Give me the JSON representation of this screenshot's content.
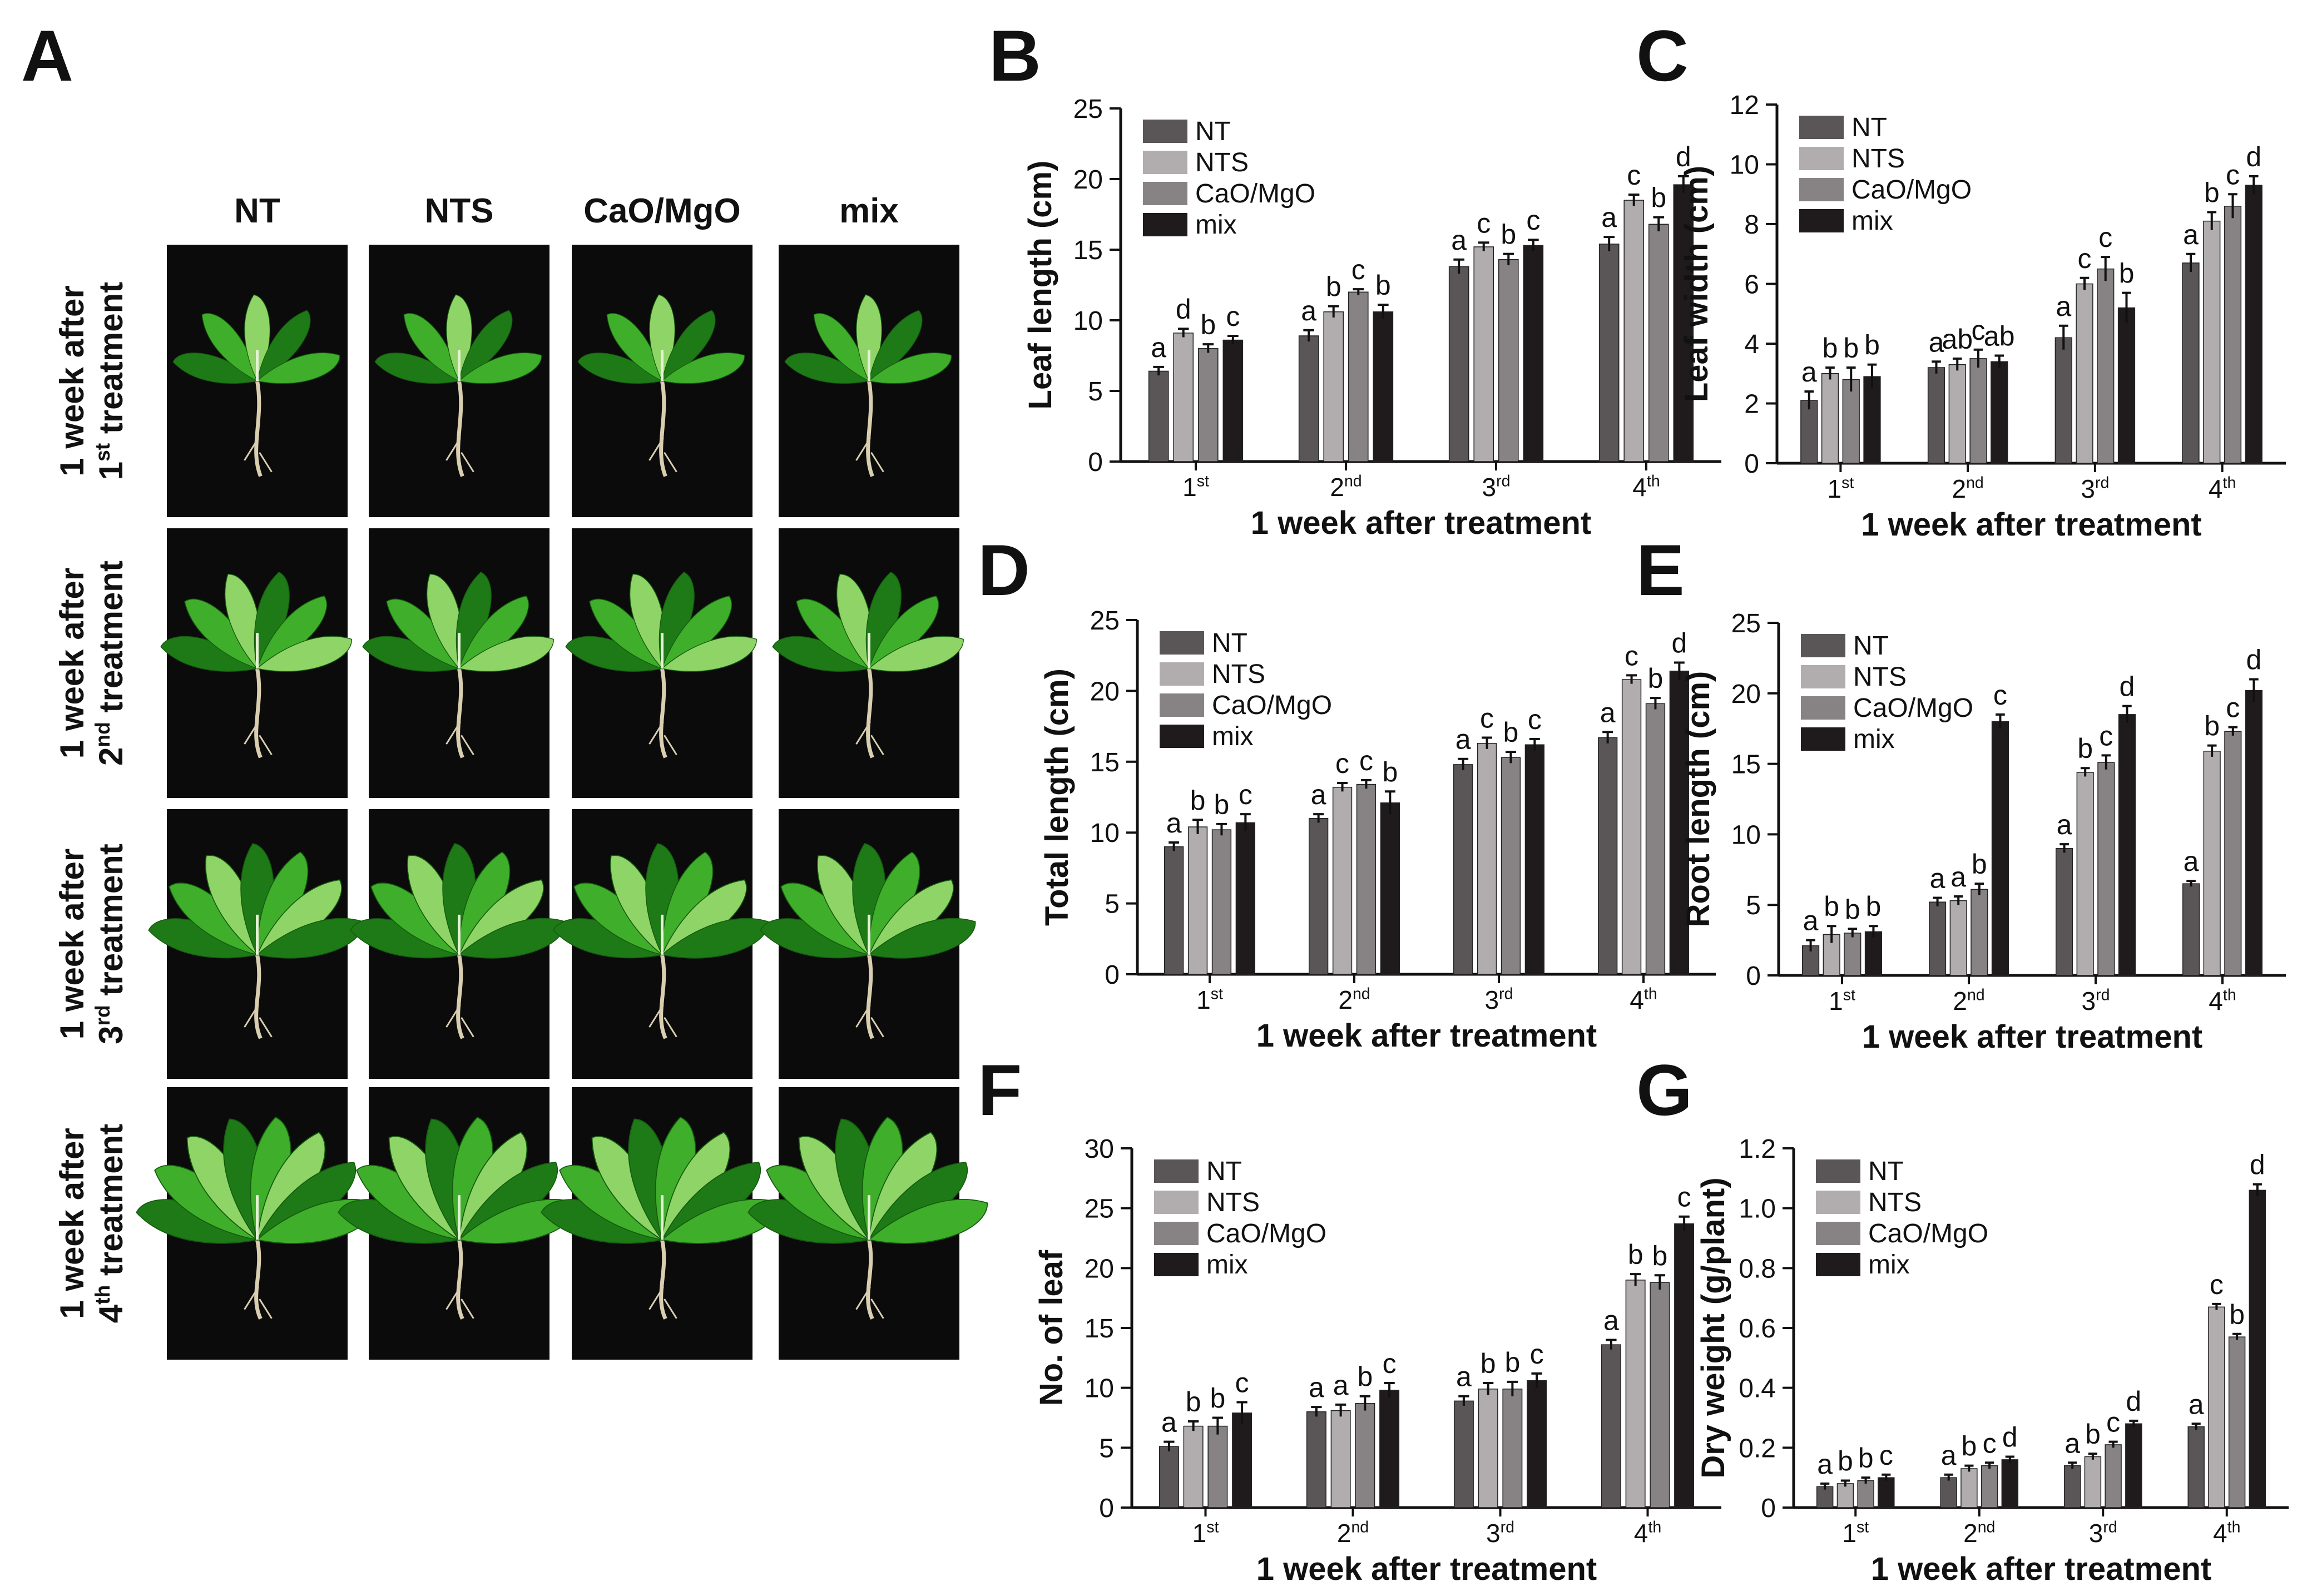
{
  "panel_a": {
    "letter": "A",
    "columns": [
      "NT",
      "NTS",
      "CaO/MgO",
      "mix"
    ],
    "rows": [
      {
        "line1": "1 week after",
        "ord": "1",
        "sup": "st",
        "rest": "treatment"
      },
      {
        "line1": "1 week after",
        "ord": "2",
        "sup": "nd",
        "rest": "treatment"
      },
      {
        "line1": "1 week after",
        "ord": "3",
        "sup": "rd",
        "rest": "treatment"
      },
      {
        "line1": "1 week after",
        "ord": "4",
        "sup": "th",
        "rest": "treatment"
      }
    ],
    "colors": {
      "background": "#0b0b0b",
      "leaf_dark": "#1e7a16",
      "leaf": "#3fae2a",
      "leaf_light": "#8fd466",
      "root": "#d9cfb0"
    }
  },
  "series_colors": {
    "NT": "#5a5556",
    "NTS": "#b1acad",
    "CaO/MgO": "#878283",
    "mix": "#1f1a1b"
  },
  "chart_data": [
    {
      "panel": "B",
      "type": "bar",
      "categories": [
        {
          "n": "1",
          "sup": "st"
        },
        {
          "n": "2",
          "sup": "nd"
        },
        {
          "n": "3",
          "sup": "rd"
        },
        {
          "n": "4",
          "sup": "th"
        }
      ],
      "xlabel": "1 week after treatment",
      "ylabel": "Leaf length (cm)",
      "ylim": [
        0,
        25
      ],
      "yticks": [
        "0",
        "5",
        "10",
        "15",
        "20",
        "25"
      ],
      "legend": "top-left",
      "series": [
        {
          "name": "NT",
          "values": [
            6.4,
            8.9,
            13.8,
            15.4
          ],
          "errors": [
            0.3,
            0.4,
            0.5,
            0.5
          ],
          "letters": [
            "a",
            "a",
            "a",
            "a"
          ]
        },
        {
          "name": "NTS",
          "values": [
            9.1,
            10.6,
            15.2,
            18.5
          ],
          "errors": [
            0.3,
            0.4,
            0.3,
            0.4
          ],
          "letters": [
            "d",
            "b",
            "c",
            "c"
          ]
        },
        {
          "name": "CaO/MgO",
          "values": [
            8.0,
            12.0,
            14.3,
            16.8
          ],
          "errors": [
            0.3,
            0.2,
            0.4,
            0.5
          ],
          "letters": [
            "b",
            "c",
            "b",
            "b"
          ]
        },
        {
          "name": "mix",
          "values": [
            8.6,
            10.6,
            15.3,
            19.6
          ],
          "errors": [
            0.3,
            0.5,
            0.4,
            0.6
          ],
          "letters": [
            "c",
            "b",
            "c",
            "d"
          ]
        }
      ]
    },
    {
      "panel": "C",
      "type": "bar",
      "categories": [
        {
          "n": "1",
          "sup": "st"
        },
        {
          "n": "2",
          "sup": "nd"
        },
        {
          "n": "3",
          "sup": "rd"
        },
        {
          "n": "4",
          "sup": "th"
        }
      ],
      "xlabel": "1 week after treatment",
      "ylabel": "Leaf width (cm)",
      "ylim": [
        0,
        12
      ],
      "yticks": [
        "0",
        "2",
        "4",
        "6",
        "8",
        "10",
        "12"
      ],
      "legend": "top-left",
      "series": [
        {
          "name": "NT",
          "values": [
            2.1,
            3.2,
            4.2,
            6.7
          ],
          "errors": [
            0.3,
            0.2,
            0.4,
            0.3
          ],
          "letters": [
            "a",
            "a",
            "a",
            "a"
          ]
        },
        {
          "name": "NTS",
          "values": [
            3.0,
            3.3,
            6.0,
            8.1
          ],
          "errors": [
            0.2,
            0.2,
            0.2,
            0.3
          ],
          "letters": [
            "b",
            "ab",
            "c",
            "b"
          ]
        },
        {
          "name": "CaO/MgO",
          "values": [
            2.8,
            3.5,
            6.5,
            8.6
          ],
          "errors": [
            0.4,
            0.3,
            0.4,
            0.4
          ],
          "letters": [
            "b",
            "c",
            "c",
            "c"
          ]
        },
        {
          "name": "mix",
          "values": [
            2.9,
            3.4,
            5.2,
            9.3
          ],
          "errors": [
            0.4,
            0.2,
            0.5,
            0.3
          ],
          "letters": [
            "b",
            "ab",
            "b",
            "d"
          ]
        }
      ]
    },
    {
      "panel": "D",
      "type": "bar",
      "categories": [
        {
          "n": "1",
          "sup": "st"
        },
        {
          "n": "2",
          "sup": "nd"
        },
        {
          "n": "3",
          "sup": "rd"
        },
        {
          "n": "4",
          "sup": "th"
        }
      ],
      "xlabel": "1 week after treatment",
      "ylabel": "Total length (cm)",
      "ylim": [
        0,
        25
      ],
      "yticks": [
        "0",
        "5",
        "10",
        "15",
        "20",
        "25"
      ],
      "legend": "top-left",
      "series": [
        {
          "name": "NT",
          "values": [
            9.0,
            11.0,
            14.8,
            16.7
          ],
          "errors": [
            0.3,
            0.3,
            0.4,
            0.4
          ],
          "letters": [
            "a",
            "a",
            "a",
            "a"
          ]
        },
        {
          "name": "NTS",
          "values": [
            10.4,
            13.2,
            16.3,
            20.8
          ],
          "errors": [
            0.5,
            0.3,
            0.4,
            0.3
          ],
          "letters": [
            "b",
            "c",
            "c",
            "c"
          ]
        },
        {
          "name": "CaO/MgO",
          "values": [
            10.2,
            13.4,
            15.3,
            19.1
          ],
          "errors": [
            0.4,
            0.3,
            0.4,
            0.4
          ],
          "letters": [
            "b",
            "c",
            "b",
            "b"
          ]
        },
        {
          "name": "mix",
          "values": [
            10.7,
            12.1,
            16.2,
            21.4
          ],
          "errors": [
            0.6,
            0.8,
            0.4,
            0.6
          ],
          "letters": [
            "c",
            "b",
            "c",
            "d"
          ]
        }
      ]
    },
    {
      "panel": "E",
      "type": "bar",
      "categories": [
        {
          "n": "1",
          "sup": "st"
        },
        {
          "n": "2",
          "sup": "nd"
        },
        {
          "n": "3",
          "sup": "rd"
        },
        {
          "n": "4",
          "sup": "th"
        }
      ],
      "xlabel": "1 week after treatment",
      "ylabel": "Root length (cm)",
      "ylim": [
        0,
        25
      ],
      "yticks": [
        "0",
        "5",
        "10",
        "15",
        "20",
        "25"
      ],
      "legend": "top-left",
      "series": [
        {
          "name": "NT",
          "values": [
            2.1,
            5.2,
            9.0,
            6.5
          ],
          "errors": [
            0.4,
            0.3,
            0.3,
            0.2
          ],
          "letters": [
            "a",
            "a",
            "a",
            "a"
          ]
        },
        {
          "name": "NTS",
          "values": [
            2.9,
            5.3,
            14.4,
            15.9
          ],
          "errors": [
            0.6,
            0.3,
            0.3,
            0.4
          ],
          "letters": [
            "b",
            "a",
            "b",
            "b"
          ]
        },
        {
          "name": "CaO/MgO",
          "values": [
            3.0,
            6.1,
            15.1,
            17.3
          ],
          "errors": [
            0.3,
            0.4,
            0.5,
            0.3
          ],
          "letters": [
            "b",
            "b",
            "c",
            "c"
          ]
        },
        {
          "name": "mix",
          "values": [
            3.1,
            18.0,
            18.5,
            20.2
          ],
          "errors": [
            0.4,
            0.5,
            0.6,
            0.8
          ],
          "letters": [
            "b",
            "c",
            "d",
            "d"
          ]
        }
      ]
    },
    {
      "panel": "F",
      "type": "bar",
      "categories": [
        {
          "n": "1",
          "sup": "st"
        },
        {
          "n": "2",
          "sup": "nd"
        },
        {
          "n": "3",
          "sup": "rd"
        },
        {
          "n": "4",
          "sup": "th"
        }
      ],
      "xlabel": "1 week after treatment",
      "ylabel": "No. of leaf",
      "ylim": [
        0,
        30
      ],
      "yticks": [
        "0",
        "5",
        "10",
        "15",
        "20",
        "25",
        "30"
      ],
      "legend": "top-left",
      "series": [
        {
          "name": "NT",
          "values": [
            5.1,
            8.0,
            8.9,
            13.6
          ],
          "errors": [
            0.4,
            0.4,
            0.4,
            0.4
          ],
          "letters": [
            "a",
            "a",
            "a",
            "a"
          ]
        },
        {
          "name": "NTS",
          "values": [
            6.8,
            8.1,
            9.9,
            19.0
          ],
          "errors": [
            0.4,
            0.5,
            0.5,
            0.5
          ],
          "letters": [
            "b",
            "a",
            "b",
            "b"
          ]
        },
        {
          "name": "CaO/MgO",
          "values": [
            6.8,
            8.7,
            9.9,
            18.8
          ],
          "errors": [
            0.7,
            0.6,
            0.6,
            0.6
          ],
          "letters": [
            "b",
            "b",
            "b",
            "b"
          ]
        },
        {
          "name": "mix",
          "values": [
            7.9,
            9.8,
            10.6,
            23.7
          ],
          "errors": [
            0.9,
            0.6,
            0.6,
            0.6
          ],
          "letters": [
            "c",
            "c",
            "c",
            "c"
          ]
        }
      ]
    },
    {
      "panel": "G",
      "type": "bar",
      "categories": [
        {
          "n": "1",
          "sup": "st"
        },
        {
          "n": "2",
          "sup": "nd"
        },
        {
          "n": "3",
          "sup": "rd"
        },
        {
          "n": "4",
          "sup": "th"
        }
      ],
      "xlabel": "1 week after treatment",
      "ylabel": "Dry weight (g/plant)",
      "ylim": [
        0,
        1.2
      ],
      "yticks": [
        "0",
        "0.2",
        "0.4",
        "0.6",
        "0.8",
        "1.0",
        "1.2"
      ],
      "legend": "top-left",
      "series": [
        {
          "name": "NT",
          "values": [
            0.07,
            0.1,
            0.14,
            0.27
          ],
          "errors": [
            0.01,
            0.01,
            0.01,
            0.01
          ],
          "letters": [
            "a",
            "a",
            "a",
            "a"
          ]
        },
        {
          "name": "NTS",
          "values": [
            0.08,
            0.13,
            0.17,
            0.67
          ],
          "errors": [
            0.01,
            0.01,
            0.01,
            0.01
          ],
          "letters": [
            "b",
            "b",
            "b",
            "c"
          ]
        },
        {
          "name": "CaO/MgO",
          "values": [
            0.09,
            0.14,
            0.21,
            0.57
          ],
          "errors": [
            0.01,
            0.01,
            0.01,
            0.01
          ],
          "letters": [
            "b",
            "c",
            "c",
            "b"
          ]
        },
        {
          "name": "mix",
          "values": [
            0.1,
            0.16,
            0.28,
            1.06
          ],
          "errors": [
            0.01,
            0.01,
            0.01,
            0.02
          ],
          "letters": [
            "c",
            "d",
            "d",
            "d"
          ]
        }
      ]
    }
  ]
}
